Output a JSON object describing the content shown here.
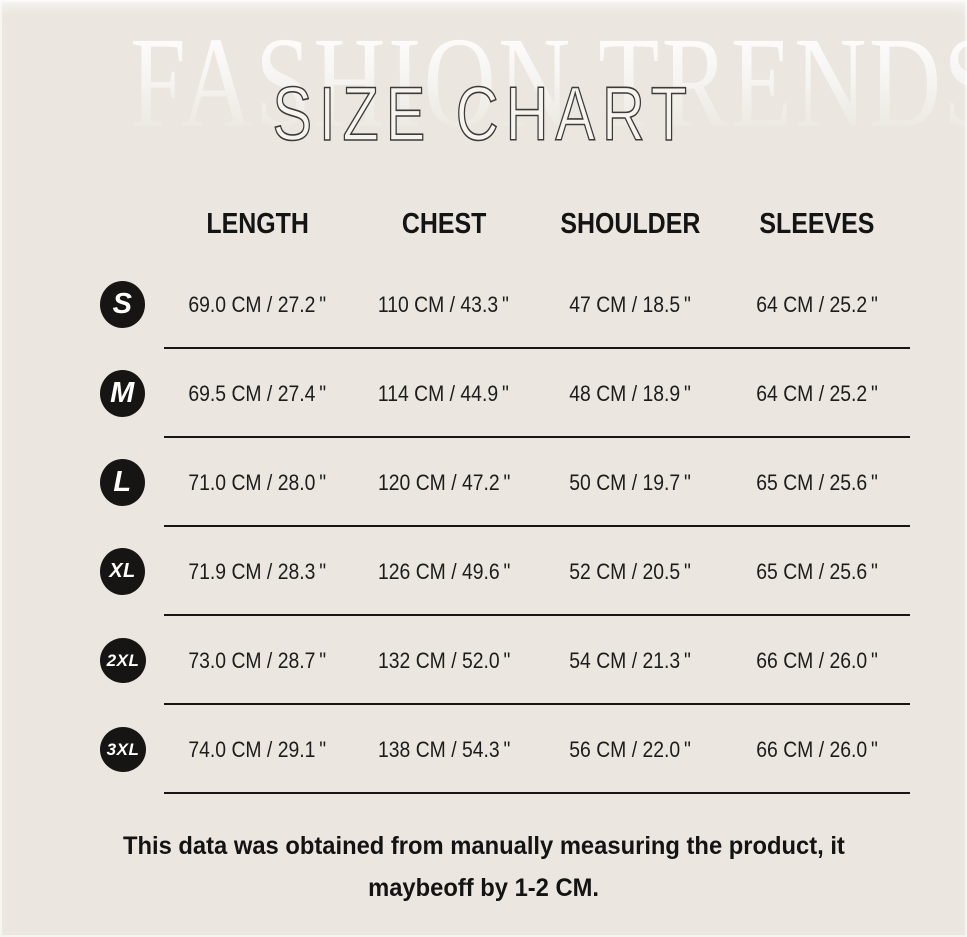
{
  "page": {
    "background_color": "#ebe6df",
    "line_color": "#161616",
    "badge_color": "#161513"
  },
  "header": {
    "watermark": "FASHION TRENDS",
    "title": "SIZE CHART"
  },
  "table": {
    "columns": [
      "LENGTH",
      "CHEST",
      "SHOULDER",
      "SLEEVES"
    ],
    "rows": [
      {
        "size": "S",
        "values": [
          "69.0 CM / 27.2 \"",
          "110 CM / 43.3 \"",
          "47 CM / 18.5 \"",
          "64 CM / 25.2 \""
        ]
      },
      {
        "size": "M",
        "values": [
          "69.5 CM / 27.4 \"",
          "114 CM / 44.9 \"",
          "48 CM / 18.9 \"",
          "64 CM / 25.2 \""
        ]
      },
      {
        "size": "L",
        "values": [
          "71.0 CM / 28.0 \"",
          "120 CM / 47.2 \"",
          "50 CM / 19.7 \"",
          "65 CM / 25.6 \""
        ]
      },
      {
        "size": "XL",
        "values": [
          "71.9 CM / 28.3 \"",
          "126 CM / 49.6 \"",
          "52 CM / 20.5 \"",
          "65 CM / 25.6 \""
        ]
      },
      {
        "size": "2XL",
        "values": [
          "73.0 CM / 28.7 \"",
          "132 CM / 52.0 \"",
          "54 CM / 21.3 \"",
          "66 CM / 26.0 \""
        ]
      },
      {
        "size": "3XL",
        "values": [
          "74.0 CM / 29.1 \"",
          "138 CM / 54.3 \"",
          "56 CM / 22.0 \"",
          "66 CM / 26.0 \""
        ]
      }
    ]
  },
  "footer": {
    "note_line1": "This data was obtained from manually measuring the product, it",
    "note_line2": "maybeoff by 1-2 CM."
  }
}
